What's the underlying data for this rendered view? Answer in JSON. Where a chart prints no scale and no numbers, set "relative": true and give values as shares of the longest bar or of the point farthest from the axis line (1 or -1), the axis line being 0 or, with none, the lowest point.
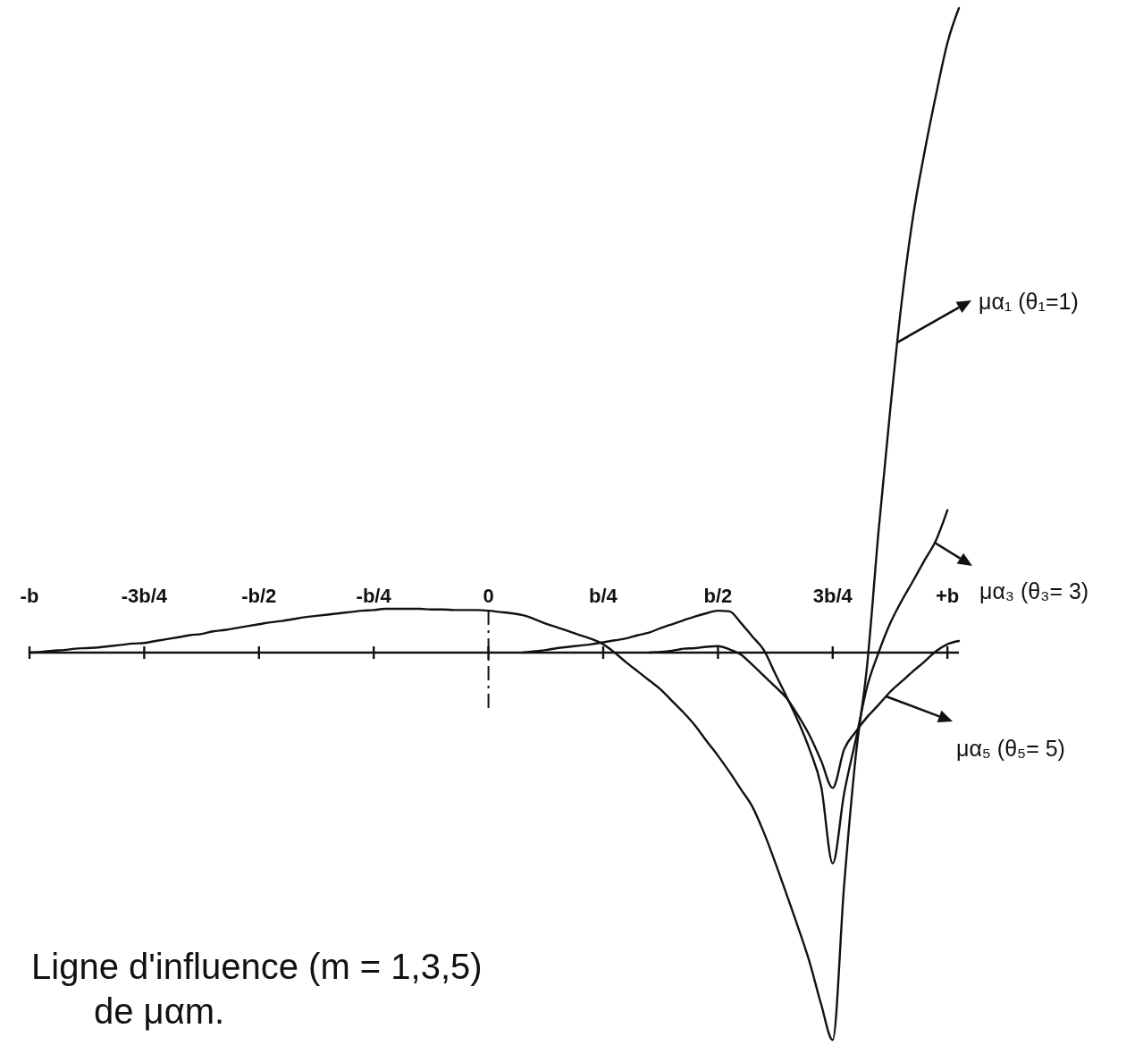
{
  "chart_data": {
    "type": "line",
    "title": "Ligne d'influence (m = 1,3,5) de μαm.",
    "relative": true,
    "tick_labels": "x",
    "legend": "right",
    "categories": [
      "-b",
      null,
      null,
      null,
      null,
      null,
      null,
      null,
      null,
      null,
      "-3b/4",
      null,
      null,
      null,
      null,
      null,
      null,
      null,
      null,
      null,
      "-b/2",
      null,
      null,
      null,
      null,
      null,
      null,
      null,
      null,
      null,
      "-b/4",
      null,
      null,
      null,
      null,
      null,
      null,
      null,
      null,
      null,
      "0",
      null,
      null,
      null,
      null,
      null,
      null,
      null,
      null,
      null,
      "b/4",
      null,
      null,
      null,
      null,
      null,
      null,
      null,
      null,
      null,
      "b/2",
      null,
      null,
      null,
      null,
      null,
      null,
      null,
      null,
      null,
      "3b/4",
      null,
      null,
      null,
      null,
      null,
      null,
      null,
      null,
      null,
      "+b",
      null
    ],
    "ref_lines": [
      {
        "axis": "x",
        "value": "0",
        "line_style": "dashed"
      }
    ],
    "series": [
      {
        "name": "μα₁ (θ₁=1)",
        "color": "#111111",
        "values": [
          0,
          0.001,
          0.003,
          0.004,
          0.006,
          0.007,
          0.008,
          0.01,
          0.012,
          0.014,
          0.015,
          0.018,
          0.021,
          0.024,
          0.027,
          0.029,
          0.033,
          0.035,
          0.038,
          0.041,
          0.044,
          0.047,
          0.049,
          0.052,
          0.055,
          0.057,
          0.059,
          0.061,
          0.063,
          0.065,
          0.066,
          0.068,
          0.068,
          0.068,
          0.068,
          0.067,
          0.067,
          0.066,
          0.066,
          0.066,
          0.065,
          0.063,
          0.061,
          0.058,
          0.052,
          0.045,
          0.039,
          0.033,
          0.027,
          0.021,
          0.013,
          0,
          -0.015,
          -0.029,
          -0.043,
          -0.057,
          -0.075,
          -0.093,
          -0.113,
          -0.137,
          -0.16,
          -0.185,
          -0.212,
          -0.239,
          -0.279,
          -0.326,
          -0.376,
          -0.427,
          -0.481,
          -0.546,
          -0.601,
          -0.36,
          -0.162,
          -0.02,
          0.189,
          0.374,
          0.542,
          0.676,
          0.776,
          0.865,
          0.946,
          1
        ]
      },
      {
        "name": "μα₃ (θ₃= 3)",
        "color": "#111111",
        "values": [
          null,
          null,
          null,
          null,
          null,
          null,
          null,
          null,
          null,
          null,
          null,
          null,
          null,
          null,
          null,
          null,
          null,
          null,
          null,
          null,
          null,
          null,
          null,
          null,
          null,
          null,
          null,
          null,
          null,
          null,
          null,
          null,
          null,
          null,
          null,
          null,
          null,
          null,
          null,
          null,
          null,
          null,
          null,
          0,
          0.002,
          0.004,
          0.007,
          0.009,
          0.011,
          0.013,
          0.016,
          0.019,
          0.022,
          0.027,
          0.031,
          0.038,
          0.044,
          0.05,
          0.056,
          0.061,
          0.065,
          0.064,
          0.046,
          0.025,
          0.004,
          -0.033,
          -0.069,
          -0.107,
          -0.151,
          -0.208,
          -0.327,
          -0.218,
          -0.136,
          -0.053,
          0,
          0.045,
          0.08,
          0.111,
          0.143,
          0.174,
          0.221,
          null
        ]
      },
      {
        "name": "μα₅ (θ₅= 5)",
        "color": "#111111",
        "values": [
          null,
          null,
          null,
          null,
          null,
          null,
          null,
          null,
          null,
          null,
          null,
          null,
          null,
          null,
          null,
          null,
          null,
          null,
          null,
          null,
          null,
          null,
          null,
          null,
          null,
          null,
          null,
          null,
          null,
          null,
          null,
          null,
          null,
          null,
          null,
          null,
          null,
          null,
          null,
          null,
          null,
          null,
          null,
          null,
          null,
          null,
          null,
          null,
          null,
          null,
          null,
          null,
          null,
          null,
          0,
          0.001,
          0.003,
          0.006,
          0.007,
          0.009,
          0.01,
          0.005,
          -0.003,
          -0.019,
          -0.036,
          -0.053,
          -0.071,
          -0.098,
          -0.129,
          -0.168,
          -0.21,
          -0.15,
          -0.123,
          -0.1,
          -0.081,
          -0.061,
          -0.045,
          -0.029,
          -0.014,
          0.002,
          0.013,
          0.018
        ]
      }
    ]
  }
}
